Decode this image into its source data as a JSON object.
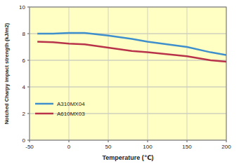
{
  "chart_data": {
    "type": "line",
    "x_label": "Temperature (℃)",
    "y_label": "Notched Charpy impact strength (kJ/m2)",
    "x": [
      -40,
      -20,
      0,
      20,
      50,
      80,
      100,
      150,
      180,
      200
    ],
    "series": [
      {
        "name": "A310MX04",
        "color": "#3f8fcc",
        "values": [
          8.0,
          8.0,
          8.05,
          8.05,
          7.85,
          7.6,
          7.4,
          7.0,
          6.6,
          6.4
        ]
      },
      {
        "name": "A610MX03",
        "color": "#b8334a",
        "values": [
          7.4,
          7.35,
          7.25,
          7.2,
          6.95,
          6.7,
          6.6,
          6.3,
          6.0,
          5.9
        ]
      }
    ],
    "xlim": [
      -50,
      200
    ],
    "xticks": [
      -50,
      0,
      50,
      100,
      150,
      200
    ],
    "ylim": [
      0,
      10
    ],
    "yticks": [
      0,
      2,
      4,
      6,
      8,
      10
    ],
    "grid": true,
    "legend": "lower left"
  }
}
